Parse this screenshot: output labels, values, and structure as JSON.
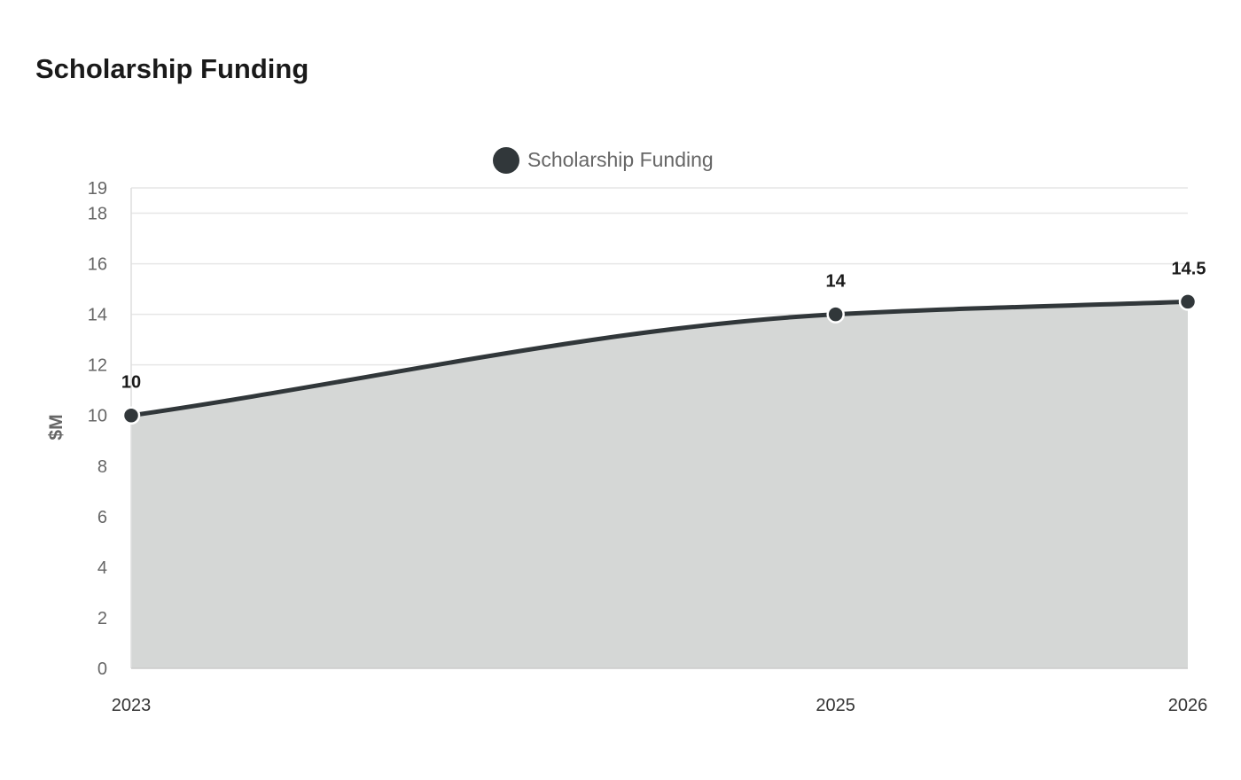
{
  "chart_title": "Scholarship Funding",
  "chart_data": {
    "type": "area",
    "title": "Scholarship Funding",
    "x": [
      "2023",
      "2025",
      "2026"
    ],
    "series": [
      {
        "name": "Scholarship Funding",
        "values": [
          10,
          14,
          14.5
        ],
        "color": "#31373a"
      }
    ],
    "data_labels": [
      "10",
      "14",
      "14.5"
    ],
    "ylabel": "$M",
    "xlabel": "",
    "ylim": [
      0,
      19
    ],
    "yticks": [
      0,
      2,
      4,
      6,
      8,
      10,
      12,
      14,
      16,
      18,
      19
    ],
    "grid": true,
    "legend": "top-center",
    "area_color": "#d5d7d6"
  }
}
